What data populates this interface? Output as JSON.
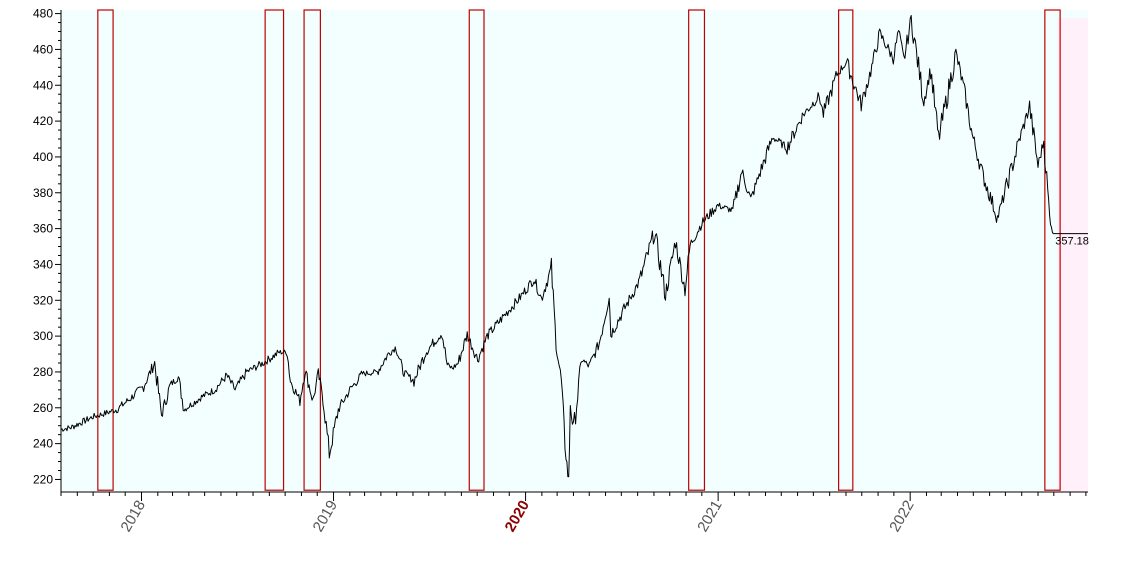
{
  "chart_data": {
    "type": "line",
    "grid": false,
    "legend": "none",
    "colors": {
      "background": "#ffffff",
      "plot_area": "#f3ffff",
      "future_area": "#fff0fa",
      "price_line": "#000000",
      "signal_line": "#c00000",
      "axis": "#000000",
      "tick_label": "#555555",
      "major_year_label": "#8b0000"
    },
    "x_range": [
      "2017-08-01",
      "2022-12-05"
    ],
    "ylim": [
      213,
      482
    ],
    "y_ticks": [
      220,
      240,
      260,
      280,
      300,
      320,
      340,
      360,
      380,
      400,
      420,
      440,
      460,
      480
    ],
    "y_tick_labels": [
      "220",
      "240",
      "260",
      "280",
      "300",
      "320",
      "340",
      "360",
      "380",
      "400",
      "420",
      "440",
      "460",
      "480"
    ],
    "x_ticks": [
      {
        "date": "2018-01-01",
        "label": "2018",
        "major": false
      },
      {
        "date": "2019-01-01",
        "label": "2019",
        "major": false
      },
      {
        "date": "2020-01-01",
        "label": "2020",
        "major": true
      },
      {
        "date": "2021-01-01",
        "label": "2021",
        "major": false
      },
      {
        "date": "2022-01-01",
        "label": "2022",
        "major": false
      }
    ],
    "last_value_label": "357.18",
    "last_value": 357.18,
    "future_start": "2022-10-07",
    "series": [
      {
        "points": [
          [
            "2017-08-01",
            248
          ],
          [
            "2017-08-20",
            249
          ],
          [
            "2017-09-10",
            252
          ],
          [
            "2017-10-01",
            255
          ],
          [
            "2017-10-25",
            257
          ],
          [
            "2017-11-15",
            259
          ],
          [
            "2017-12-10",
            265
          ],
          [
            "2018-01-05",
            272
          ],
          [
            "2018-01-26",
            285
          ],
          [
            "2018-02-08",
            256
          ],
          [
            "2018-02-25",
            273
          ],
          [
            "2018-03-12",
            277
          ],
          [
            "2018-03-23",
            259
          ],
          [
            "2018-04-06",
            262
          ],
          [
            "2018-04-25",
            266
          ],
          [
            "2018-05-20",
            270
          ],
          [
            "2018-06-12",
            278
          ],
          [
            "2018-06-28",
            270
          ],
          [
            "2018-07-20",
            280
          ],
          [
            "2018-08-20",
            285
          ],
          [
            "2018-09-20",
            291
          ],
          [
            "2018-10-05",
            291
          ],
          [
            "2018-10-11",
            275
          ],
          [
            "2018-10-29",
            264
          ],
          [
            "2018-11-08",
            281
          ],
          [
            "2018-11-23",
            264
          ],
          [
            "2018-12-03",
            279
          ],
          [
            "2018-12-12",
            266
          ],
          [
            "2018-12-24",
            234
          ],
          [
            "2019-01-10",
            259
          ],
          [
            "2019-02-01",
            270
          ],
          [
            "2019-02-25",
            279
          ],
          [
            "2019-03-25",
            280
          ],
          [
            "2019-04-15",
            290
          ],
          [
            "2019-04-30",
            294
          ],
          [
            "2019-05-13",
            280
          ],
          [
            "2019-06-03",
            275
          ],
          [
            "2019-06-25",
            291
          ],
          [
            "2019-07-26",
            302
          ],
          [
            "2019-08-05",
            284
          ],
          [
            "2019-08-15",
            282
          ],
          [
            "2019-08-26",
            285
          ],
          [
            "2019-09-12",
            301
          ],
          [
            "2019-10-02",
            287
          ],
          [
            "2019-10-20",
            300
          ],
          [
            "2019-11-20",
            311
          ],
          [
            "2019-12-20",
            321
          ],
          [
            "2020-01-17",
            332
          ],
          [
            "2020-01-31",
            321
          ],
          [
            "2020-02-19",
            338
          ],
          [
            "2020-02-28",
            296
          ],
          [
            "2020-03-09",
            275
          ],
          [
            "2020-03-16",
            239
          ],
          [
            "2020-03-23",
            218
          ],
          [
            "2020-03-26",
            262
          ],
          [
            "2020-04-01",
            247
          ],
          [
            "2020-04-17",
            287
          ],
          [
            "2020-05-01",
            283
          ],
          [
            "2020-05-20",
            296
          ],
          [
            "2020-06-08",
            323
          ],
          [
            "2020-06-11",
            301
          ],
          [
            "2020-07-10",
            317
          ],
          [
            "2020-08-05",
            331
          ],
          [
            "2020-09-02",
            358
          ],
          [
            "2020-09-23",
            323
          ],
          [
            "2020-10-12",
            353
          ],
          [
            "2020-10-30",
            326
          ],
          [
            "2020-11-09",
            351
          ],
          [
            "2020-12-01",
            363
          ],
          [
            "2020-12-31",
            373
          ],
          [
            "2021-01-29",
            370
          ],
          [
            "2021-02-15",
            392
          ],
          [
            "2021-03-04",
            376
          ],
          [
            "2021-03-20",
            390
          ],
          [
            "2021-04-15",
            411
          ],
          [
            "2021-05-12",
            405
          ],
          [
            "2021-06-10",
            423
          ],
          [
            "2021-07-12",
            434
          ],
          [
            "2021-07-20",
            424
          ],
          [
            "2021-08-15",
            446
          ],
          [
            "2021-09-02",
            453
          ],
          [
            "2021-09-30",
            429
          ],
          [
            "2021-10-20",
            450
          ],
          [
            "2021-11-04",
            469
          ],
          [
            "2021-11-30",
            455
          ],
          [
            "2021-12-10",
            470
          ],
          [
            "2021-12-20",
            454
          ],
          [
            "2022-01-03",
            477
          ],
          [
            "2022-01-27",
            431
          ],
          [
            "2022-02-09",
            449
          ],
          [
            "2022-02-24",
            410
          ],
          [
            "2022-03-29",
            458
          ],
          [
            "2022-04-14",
            437
          ],
          [
            "2022-04-29",
            412
          ],
          [
            "2022-05-20",
            389
          ],
          [
            "2022-06-16",
            366
          ],
          [
            "2022-07-01",
            381
          ],
          [
            "2022-07-29",
            411
          ],
          [
            "2022-08-16",
            428
          ],
          [
            "2022-09-01",
            395
          ],
          [
            "2022-09-12",
            409
          ],
          [
            "2022-09-23",
            367
          ],
          [
            "2022-09-30",
            357.18
          ]
        ]
      }
    ],
    "signal_bands": [
      {
        "start": "2017-10-10",
        "end": "2017-11-08",
        "top": 482,
        "bottom": 214
      },
      {
        "start": "2018-08-24",
        "end": "2018-09-28",
        "top": 482,
        "bottom": 214
      },
      {
        "start": "2018-11-06",
        "end": "2018-12-07",
        "top": 482,
        "bottom": 214
      },
      {
        "start": "2019-09-16",
        "end": "2019-10-14",
        "top": 482,
        "bottom": 214
      },
      {
        "start": "2020-11-06",
        "end": "2020-12-06",
        "top": 482,
        "bottom": 214
      },
      {
        "start": "2021-08-18",
        "end": "2021-09-14",
        "top": 482,
        "bottom": 214
      },
      {
        "start": "2022-09-14",
        "end": "2022-10-13",
        "top": 482,
        "bottom": 214
      }
    ]
  }
}
